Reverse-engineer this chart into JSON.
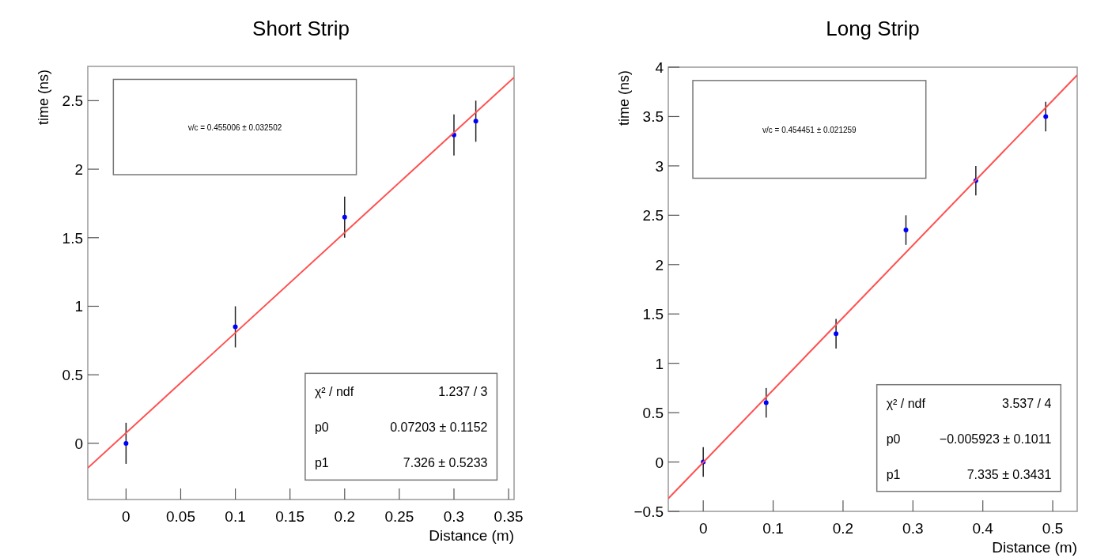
{
  "chart_data": [
    {
      "type": "scatter",
      "title": "Short Strip",
      "xlabel": "Distance (m)",
      "ylabel": "time (ns)",
      "xlim": [
        -0.035,
        0.355
      ],
      "xticks": [
        0,
        0.05,
        0.1,
        0.15,
        0.2,
        0.25,
        0.3,
        0.35
      ],
      "ylim": [
        -0.41,
        2.75
      ],
      "yticks": [
        0,
        0.5,
        1,
        1.5,
        2,
        2.5
      ],
      "annotations": [
        "v/c = 0.455006 ± 0.032502",
        "χ² / ndf",
        "1.237 / 3",
        "p0",
        "0.07203 ± 0.1152",
        "p1",
        "7.326 ± 0.5233"
      ],
      "series": [
        {
          "color": "#0000ff",
          "marker": "circle",
          "x": [
            0,
            0.1,
            0.2,
            0.3,
            0.32
          ],
          "values": [
            0,
            0.85,
            1.65,
            2.25,
            2.35
          ],
          "errors": [
            0.15,
            0.15,
            0.15,
            0.15,
            0.15
          ]
        },
        {
          "type": "line",
          "color": "#ff5050",
          "x": [
            -0.035,
            0.355
          ],
          "values": [
            -0.18,
            2.67
          ]
        }
      ]
    },
    {
      "type": "scatter",
      "title": "Long Strip",
      "xlabel": "Distance (m)",
      "ylabel": "time (ns)",
      "xlim": [
        -0.05,
        0.535
      ],
      "xticks": [
        0,
        0.1,
        0.2,
        0.3,
        0.4,
        0.5
      ],
      "ylim": [
        -0.5,
        4
      ],
      "yticks": [
        -0.5,
        0,
        0.5,
        1,
        1.5,
        2,
        2.5,
        3,
        3.5,
        4
      ],
      "annotations": [
        "v/c = 0.454451 ± 0.021259",
        "χ² / ndf",
        "3.537 / 4",
        "p0",
        "−0.005923 ± 0.1011",
        "p1",
        "7.335 ± 0.3431"
      ],
      "series": [
        {
          "color": "#0000ff",
          "marker": "circle",
          "x": [
            0,
            0.09,
            0.19,
            0.29,
            0.39,
            0.49
          ],
          "values": [
            0,
            0.6,
            1.3,
            2.35,
            2.85,
            3.5
          ],
          "errors": [
            0.15,
            0.15,
            0.15,
            0.15,
            0.15,
            0.15
          ]
        },
        {
          "type": "line",
          "color": "#ff5050",
          "x": [
            -0.05,
            0.535
          ],
          "values": [
            -0.37,
            3.92
          ]
        }
      ]
    }
  ]
}
